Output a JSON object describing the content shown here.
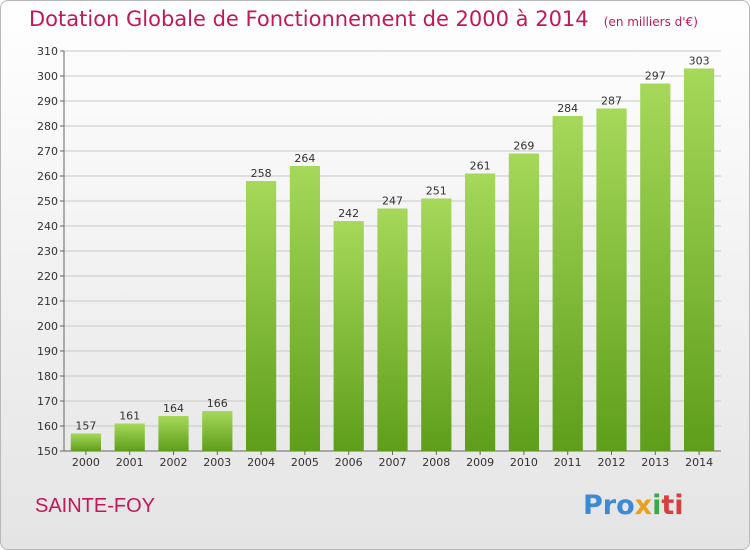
{
  "chart_data": {
    "type": "bar",
    "title": "Dotation Globale de Fonctionnement de 2000 à 2014",
    "subtitle": "(en milliers d'€)",
    "categories": [
      "2000",
      "2001",
      "2002",
      "2003",
      "2004",
      "2005",
      "2006",
      "2007",
      "2008",
      "2009",
      "2010",
      "2011",
      "2012",
      "2013",
      "2014"
    ],
    "values": [
      157,
      161,
      164,
      166,
      258,
      264,
      242,
      247,
      251,
      261,
      269,
      284,
      287,
      297,
      303
    ],
    "ylim": [
      150,
      310
    ],
    "yticks": [
      150,
      160,
      170,
      180,
      190,
      200,
      210,
      220,
      230,
      240,
      250,
      260,
      270,
      280,
      290,
      300,
      310
    ],
    "grid": true,
    "bar_color": "#8cc63f"
  },
  "footer": {
    "commune": "SAINTE-FOY",
    "logo": [
      "Pro",
      "x",
      "i",
      "ti"
    ]
  },
  "colors": {
    "title": "#c2185b",
    "bar_light": "#a6d85a",
    "bar_dark": "#5e9e1a"
  }
}
